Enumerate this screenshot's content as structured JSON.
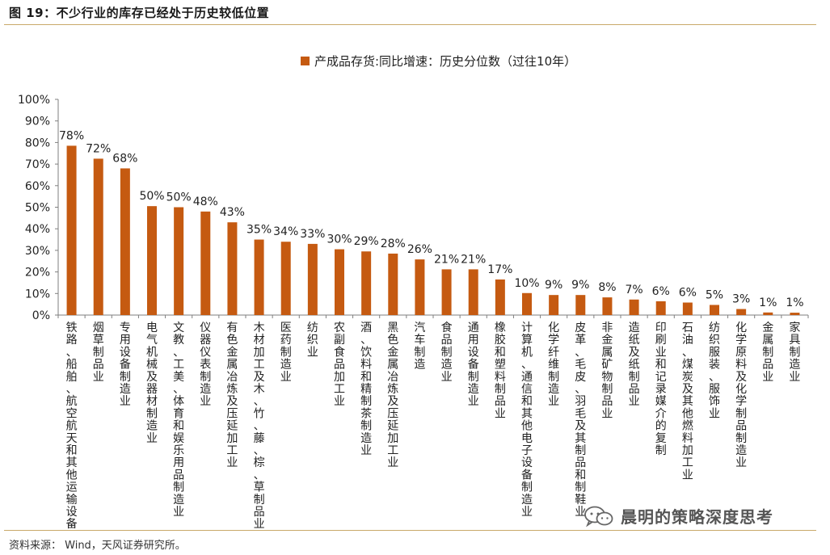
{
  "header": {
    "title": "图 19：不少行业的库存已经处于历史较低位置"
  },
  "footer": {
    "source": "资料来源： Wind，天风证券研究所。",
    "watermark": "晨明的策略深度思考"
  },
  "colors": {
    "bar": "#c55a11",
    "rule": "#c9a96a",
    "axis": "#7f7f7f"
  },
  "chart_data": {
    "type": "bar",
    "legend": [
      "产成品存货:同比增速：历史分位数（过往10年）"
    ],
    "legend_position": "top-center",
    "grid": false,
    "ylim": [
      0,
      100
    ],
    "yticks": [
      "0%",
      "10%",
      "20%",
      "30%",
      "40%",
      "50%",
      "60%",
      "70%",
      "80%",
      "90%",
      "100%"
    ],
    "categories": [
      "铁路、船舶、航空航天和其他运输设备…",
      "烟草制品业",
      "专用设备制造业",
      "电气机械及器材制造业",
      "文教、工美、体育和娱乐用品制造业",
      "仪器仪表制造业",
      "有色金属冶炼及压延加工业",
      "木材加工及木、竹、藤、棕、草制品业",
      "医药制造业",
      "纺织业",
      "农副食品加工业",
      "酒、饮料和精制茶制造业",
      "黑色金属冶炼及压延加工业",
      "汽车制造",
      "食品制造业",
      "通用设备制造业",
      "橡胶和塑料制品业",
      "计算机、通信和其他电子设备制造业",
      "化学纤维制造业",
      "皮革、毛皮、羽毛及其制品和制鞋业",
      "非金属矿物制品业",
      "造纸及纸制品业",
      "印刷业和记录媒介的复制",
      "石油、煤炭及其他燃料加工业",
      "纺织服装、服饰业",
      "化学原料及化学制品制造业",
      "金属制品业",
      "家具制造业"
    ],
    "values": [
      78,
      72,
      68,
      50,
      50,
      48,
      43,
      35,
      34,
      33,
      30,
      29,
      28,
      26,
      21,
      21,
      17,
      10,
      9,
      9,
      8,
      7,
      6,
      6,
      5,
      3,
      1,
      1
    ],
    "labels": [
      "78%",
      "72%",
      "68%",
      "50%",
      "50%",
      "48%",
      "43%",
      "35%",
      "34%",
      "33%",
      "30%",
      "29%",
      "28%",
      "26%",
      "21%",
      "21%",
      "17%",
      "10%",
      "9%",
      "9%",
      "8%",
      "7%",
      "6%",
      "6%",
      "5%",
      "3%",
      "1%",
      "1%"
    ],
    "label_values": [
      78.5,
      72.5,
      68,
      50.5,
      50,
      48,
      43,
      35,
      34,
      33,
      30.5,
      29.5,
      28.5,
      25.8,
      21.2,
      21.2,
      16.5,
      10.2,
      9.3,
      9.3,
      8.2,
      7.2,
      6.4,
      5.8,
      4.7,
      2.8,
      1.2,
      1.1
    ]
  }
}
